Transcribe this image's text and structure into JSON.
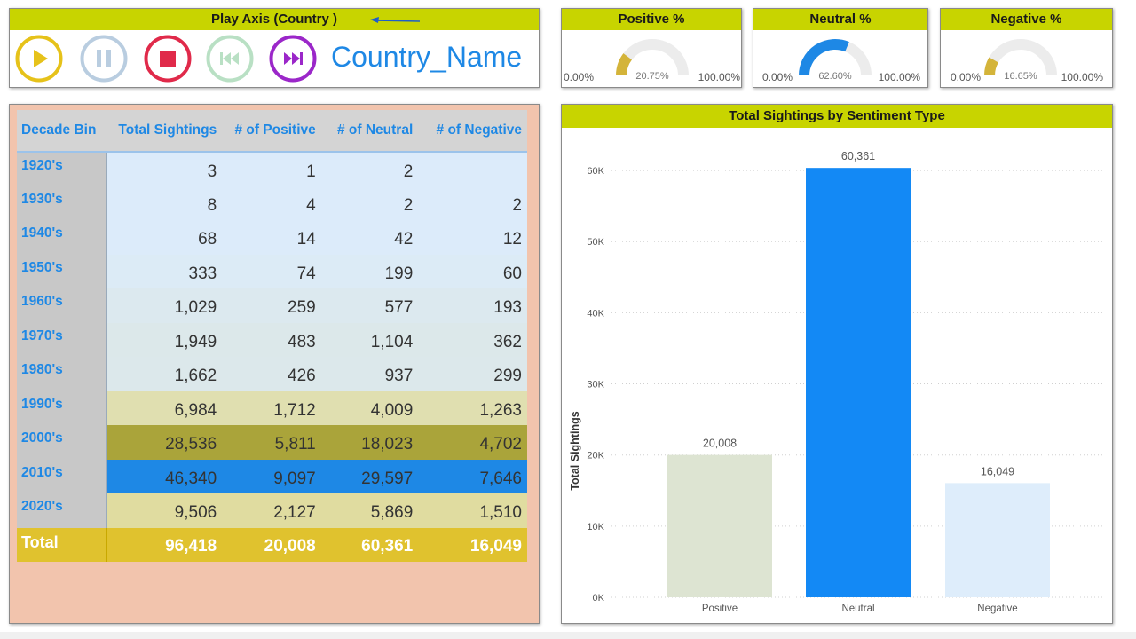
{
  "play_axis": {
    "title": "Play Axis (Country )",
    "country_label": "Country_Name",
    "buttons": [
      {
        "name": "play-button",
        "icon": "play-icon",
        "color": "#e6c21a"
      },
      {
        "name": "pause-button",
        "icon": "pause-icon",
        "color": "#b9cde0"
      },
      {
        "name": "stop-button",
        "icon": "stop-icon",
        "color": "#e02a4a"
      },
      {
        "name": "previous-button",
        "icon": "skip-back-icon",
        "color": "#b9e0c4"
      },
      {
        "name": "next-button",
        "icon": "skip-forward-icon",
        "color": "#9b27c9"
      }
    ]
  },
  "gauges": [
    {
      "title": "Positive %",
      "min": "0.00%",
      "max": "100.00%",
      "value_label": "20.75%",
      "value": 0.2075,
      "color": "#d4b43a"
    },
    {
      "title": "Neutral %",
      "min": "0.00%",
      "max": "100.00%",
      "value_label": "62.60%",
      "value": 0.626,
      "color": "#1e88e5"
    },
    {
      "title": "Negative %",
      "min": "0.00%",
      "max": "100.00%",
      "value_label": "16.65%",
      "value": 0.1665,
      "color": "#d4b43a"
    }
  ],
  "matrix": {
    "headers": [
      "Decade Bin",
      "Total Sightings",
      "# of Positive",
      "# of Neutral",
      "# of Negative"
    ],
    "rows": [
      {
        "label": "1920's",
        "values": [
          "3",
          "1",
          "2",
          ""
        ],
        "bg": "#dcebfa"
      },
      {
        "label": "1930's",
        "values": [
          "8",
          "4",
          "2",
          "2"
        ],
        "bg": "#dcebfa"
      },
      {
        "label": "1940's",
        "values": [
          "68",
          "14",
          "42",
          "12"
        ],
        "bg": "#dcebfa"
      },
      {
        "label": "1950's",
        "values": [
          "333",
          "74",
          "199",
          "60"
        ],
        "bg": "#dcebf6"
      },
      {
        "label": "1960's",
        "values": [
          "1,029",
          "259",
          "577",
          "193"
        ],
        "bg": "#dce9ef"
      },
      {
        "label": "1970's",
        "values": [
          "1,949",
          "483",
          "1,104",
          "362"
        ],
        "bg": "#dce8ea"
      },
      {
        "label": "1980's",
        "values": [
          "1,662",
          "426",
          "937",
          "299"
        ],
        "bg": "#dce8eb"
      },
      {
        "label": "1990's",
        "values": [
          "6,984",
          "1,712",
          "4,009",
          "1,263"
        ],
        "bg": "#e0dfb0"
      },
      {
        "label": "2000's",
        "values": [
          "28,536",
          "5,811",
          "18,023",
          "4,702"
        ],
        "bg": "#aaa43a"
      },
      {
        "label": "2010's",
        "values": [
          "46,340",
          "9,097",
          "29,597",
          "7,646"
        ],
        "bg": "#1e88e5"
      },
      {
        "label": "2020's",
        "values": [
          "9,506",
          "2,127",
          "5,869",
          "1,510"
        ],
        "bg": "#e0dca0"
      }
    ],
    "total": {
      "label": "Total",
      "values": [
        "96,418",
        "20,008",
        "60,361",
        "16,049"
      ]
    }
  },
  "chart_data": {
    "type": "bar",
    "title": "Total Sightings by Sentiment Type",
    "ylabel": "Total Sightings",
    "xlabel": "",
    "categories": [
      "Positive",
      "Neutral",
      "Negative"
    ],
    "values": [
      20008,
      60361,
      16049
    ],
    "value_labels": [
      "20,008",
      "60,361",
      "16,049"
    ],
    "bar_colors": [
      "#dde4d2",
      "#1389f5",
      "#deedfb"
    ],
    "ylim": [
      0,
      64000
    ],
    "yticks": [
      0,
      10000,
      20000,
      30000,
      40000,
      50000,
      60000
    ],
    "ytick_labels": [
      "0K",
      "10K",
      "20K",
      "30K",
      "40K",
      "50K",
      "60K"
    ],
    "grid": true
  }
}
